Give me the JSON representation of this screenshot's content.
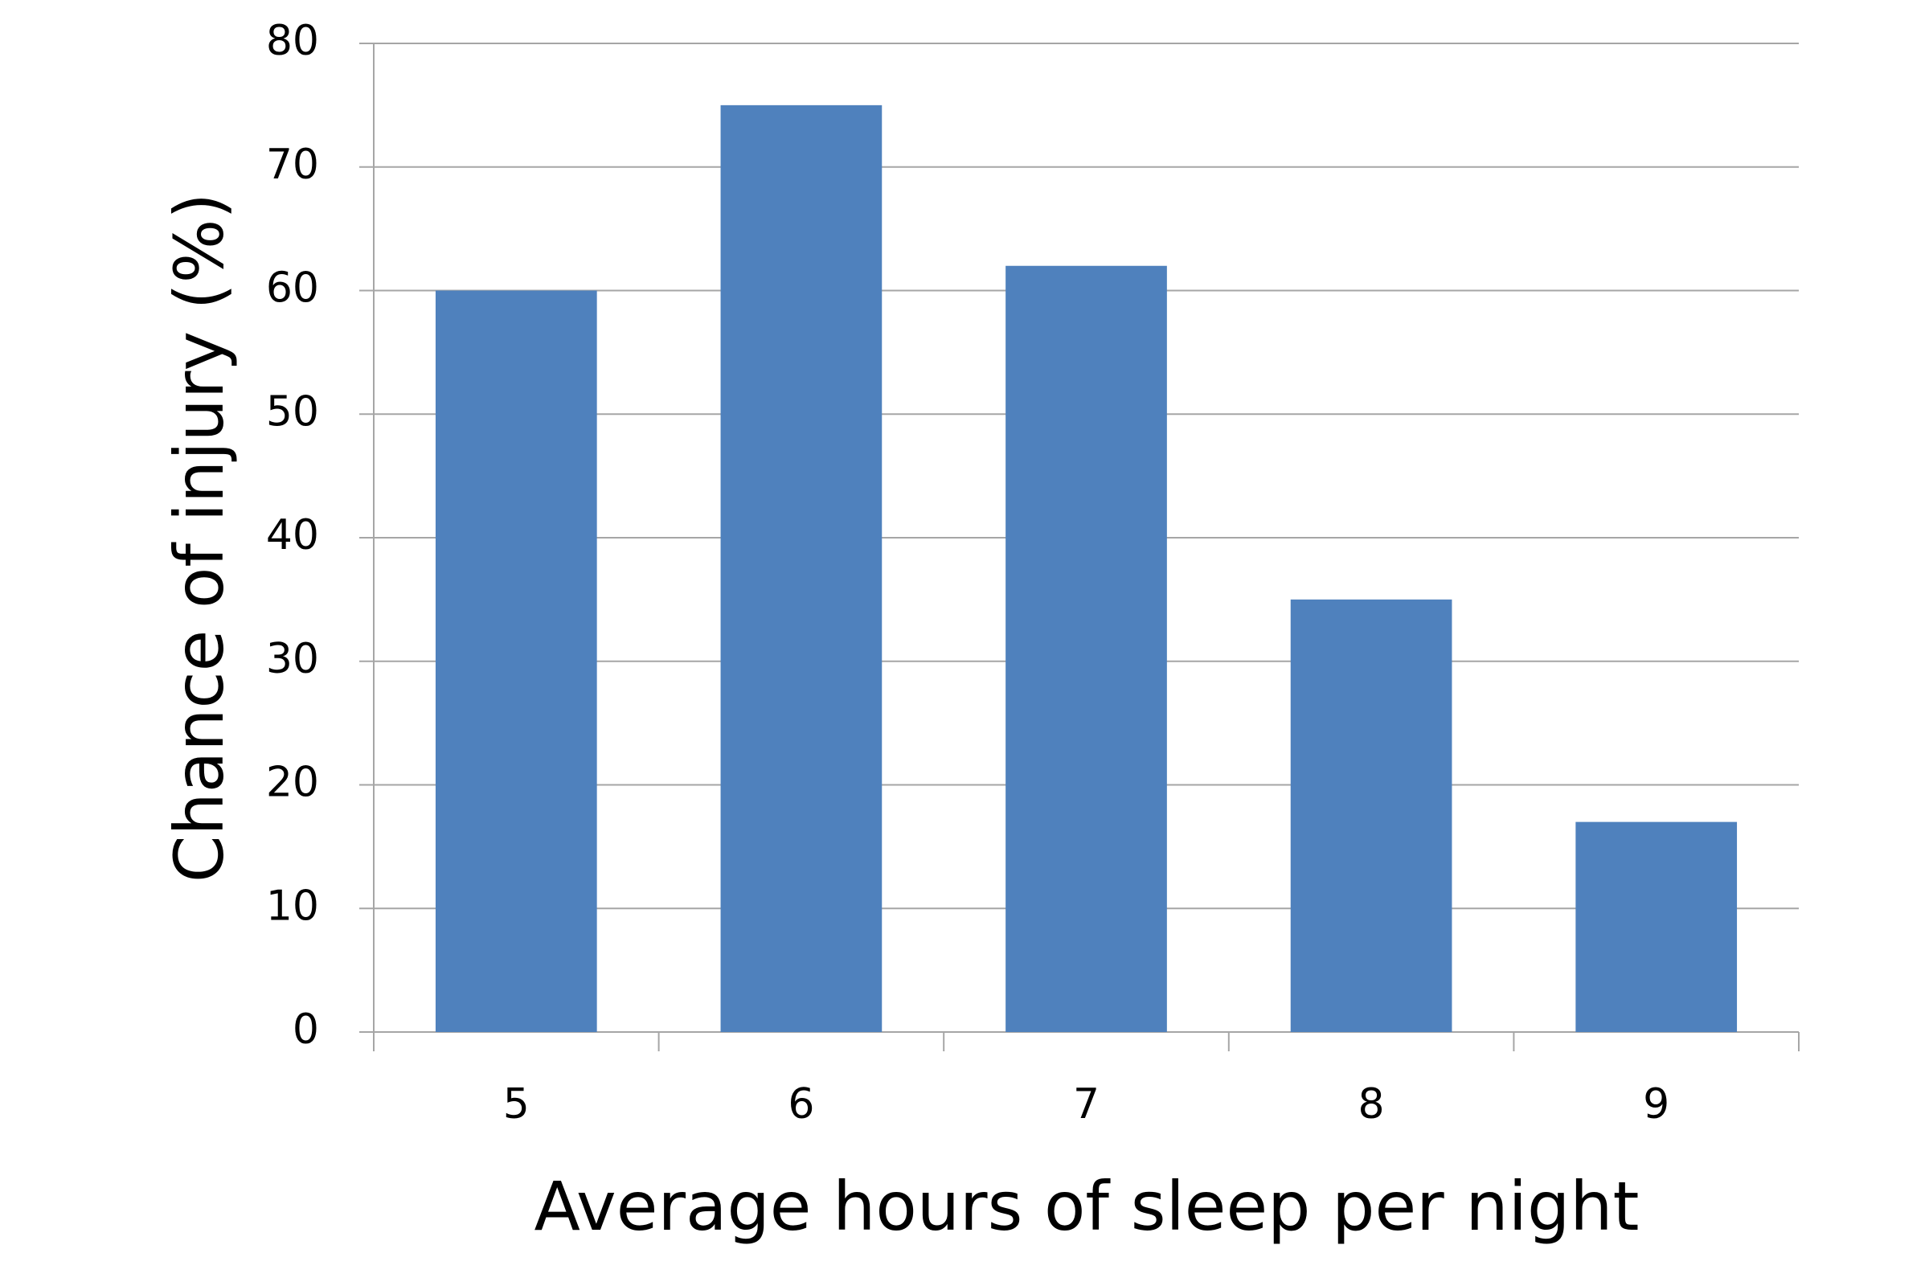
{
  "chart_data": {
    "type": "bar",
    "x_label": "Average hours of sleep per night",
    "y_label": "Chance of injury (%)",
    "categories": [
      "5",
      "6",
      "7",
      "8",
      "9"
    ],
    "values": [
      60,
      75,
      62,
      35,
      17
    ],
    "color": "#4f81bd",
    "ylim": [
      0,
      80
    ],
    "yticks": [
      0,
      10,
      20,
      30,
      40,
      50,
      60,
      70,
      80
    ],
    "grid": true
  }
}
